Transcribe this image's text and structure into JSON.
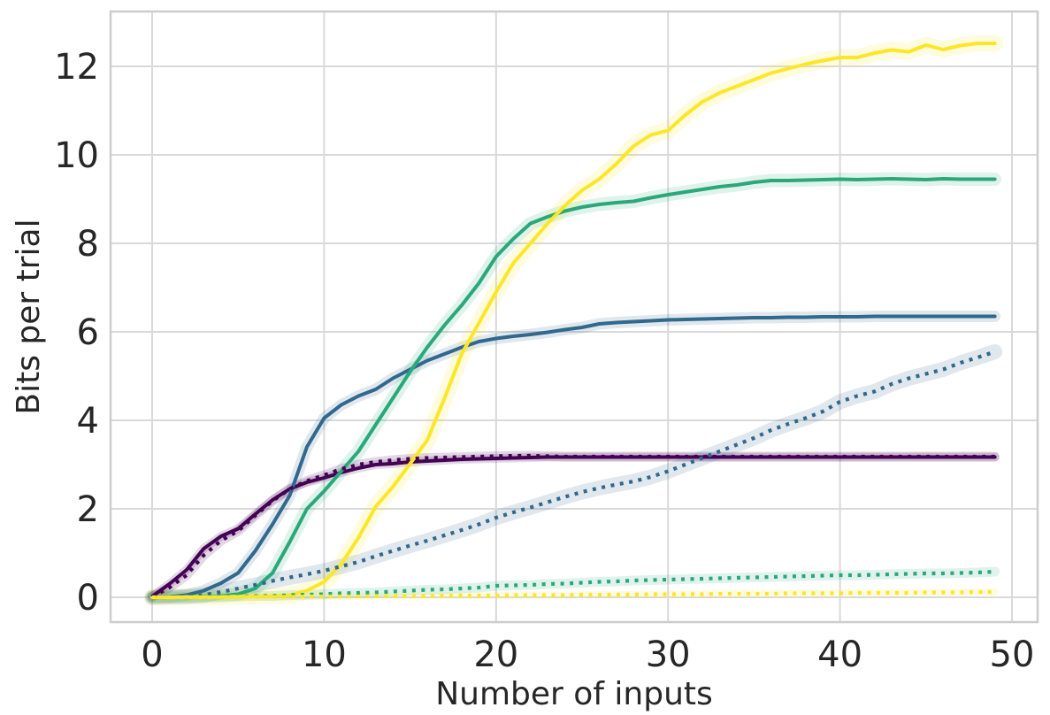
{
  "chart_data": {
    "type": "line",
    "title": "",
    "xlabel": "Number of inputs",
    "ylabel": "Bits per trial",
    "xlim": [
      -2.4,
      51.5
    ],
    "ylim": [
      -0.65,
      13.25
    ],
    "xticks": [
      0,
      10,
      20,
      30,
      40,
      50
    ],
    "yticks": [
      0,
      2,
      4,
      6,
      8,
      10,
      12
    ],
    "grid": true,
    "legend_position": "none",
    "x": [
      0,
      1,
      2,
      3,
      4,
      5,
      6,
      7,
      8,
      9,
      10,
      11,
      12,
      13,
      14,
      15,
      16,
      17,
      18,
      19,
      20,
      21,
      22,
      23,
      24,
      25,
      26,
      27,
      28,
      29,
      30,
      31,
      32,
      33,
      34,
      35,
      36,
      37,
      38,
      39,
      40,
      41,
      42,
      43,
      44,
      45,
      46,
      47,
      48,
      49
    ],
    "series": [
      {
        "name": "purple-solid",
        "color": "#440154",
        "style": "solid",
        "band": 0.06,
        "values": [
          0.02,
          0.3,
          0.62,
          1.1,
          1.38,
          1.55,
          1.88,
          2.2,
          2.45,
          2.6,
          2.7,
          2.82,
          2.92,
          3.0,
          3.02,
          3.06,
          3.08,
          3.1,
          3.12,
          3.13,
          3.14,
          3.15,
          3.16,
          3.17,
          3.17,
          3.17,
          3.17,
          3.17,
          3.17,
          3.17,
          3.17,
          3.17,
          3.17,
          3.17,
          3.17,
          3.17,
          3.17,
          3.17,
          3.17,
          3.17,
          3.17,
          3.17,
          3.17,
          3.17,
          3.17,
          3.17,
          3.17,
          3.17,
          3.17,
          3.17
        ]
      },
      {
        "name": "blue-solid",
        "color": "#31688e",
        "style": "solid",
        "band": 0.09,
        "values": [
          0.0,
          0.01,
          0.05,
          0.15,
          0.32,
          0.55,
          1.05,
          1.65,
          2.3,
          3.4,
          4.05,
          4.35,
          4.55,
          4.7,
          4.95,
          5.15,
          5.35,
          5.5,
          5.65,
          5.78,
          5.85,
          5.9,
          5.94,
          5.99,
          6.05,
          6.1,
          6.18,
          6.21,
          6.23,
          6.25,
          6.27,
          6.28,
          6.29,
          6.3,
          6.31,
          6.32,
          6.32,
          6.33,
          6.33,
          6.34,
          6.34,
          6.34,
          6.35,
          6.35,
          6.35,
          6.35,
          6.35,
          6.35,
          6.35,
          6.35
        ]
      },
      {
        "name": "green-solid",
        "color": "#2aa87c",
        "style": "solid",
        "band": 0.11,
        "values": [
          0.0,
          0.01,
          0.01,
          0.02,
          0.03,
          0.07,
          0.2,
          0.55,
          1.25,
          2.0,
          2.4,
          2.85,
          3.3,
          3.9,
          4.5,
          5.1,
          5.65,
          6.15,
          6.6,
          7.1,
          7.7,
          8.1,
          8.45,
          8.6,
          8.73,
          8.82,
          8.88,
          8.92,
          8.95,
          9.03,
          9.1,
          9.16,
          9.22,
          9.28,
          9.32,
          9.38,
          9.42,
          9.42,
          9.43,
          9.44,
          9.45,
          9.44,
          9.45,
          9.46,
          9.45,
          9.44,
          9.46,
          9.45,
          9.45,
          9.45
        ]
      },
      {
        "name": "yellow-solid",
        "color": "#fde725",
        "style": "solid",
        "band": 0.15,
        "values": [
          0.0,
          0.0,
          0.01,
          0.01,
          0.01,
          0.02,
          0.02,
          0.03,
          0.05,
          0.15,
          0.35,
          0.75,
          1.35,
          2.05,
          2.5,
          3.02,
          3.55,
          4.5,
          5.5,
          6.2,
          6.9,
          7.55,
          8.0,
          8.45,
          8.85,
          9.2,
          9.45,
          9.8,
          10.2,
          10.45,
          10.55,
          10.9,
          11.2,
          11.4,
          11.55,
          11.7,
          11.85,
          11.95,
          12.05,
          12.13,
          12.2,
          12.2,
          12.3,
          12.37,
          12.33,
          12.48,
          12.38,
          12.47,
          12.52,
          12.52
        ]
      },
      {
        "name": "purple-dotted",
        "color": "#440154",
        "style": "dotted",
        "band": 0.07,
        "values": [
          0.01,
          0.22,
          0.5,
          0.95,
          1.28,
          1.5,
          1.85,
          2.18,
          2.45,
          2.63,
          2.76,
          2.9,
          3.0,
          3.06,
          3.1,
          3.13,
          3.15,
          3.16,
          3.17,
          3.18,
          3.19,
          3.2,
          3.2,
          3.19,
          3.18,
          3.18,
          3.18,
          3.18,
          3.18,
          3.18,
          3.18,
          3.18,
          3.18,
          3.18,
          3.18,
          3.18,
          3.18,
          3.18,
          3.18,
          3.18,
          3.18,
          3.18,
          3.18,
          3.18,
          3.18,
          3.18,
          3.18,
          3.18,
          3.18,
          3.18
        ]
      },
      {
        "name": "blue-dotted",
        "color": "#31688e",
        "style": "dotted",
        "band": 0.13,
        "values": [
          0.0,
          0.01,
          0.02,
          0.05,
          0.12,
          0.2,
          0.28,
          0.37,
          0.45,
          0.52,
          0.6,
          0.7,
          0.8,
          0.93,
          1.05,
          1.17,
          1.28,
          1.4,
          1.52,
          1.65,
          1.8,
          1.92,
          2.03,
          2.15,
          2.27,
          2.38,
          2.47,
          2.55,
          2.62,
          2.72,
          2.85,
          3.0,
          3.15,
          3.3,
          3.45,
          3.6,
          3.78,
          3.92,
          4.05,
          4.2,
          4.42,
          4.55,
          4.65,
          4.82,
          4.95,
          5.05,
          5.15,
          5.3,
          5.42,
          5.55
        ]
      },
      {
        "name": "green-dotted",
        "color": "#2aa87c",
        "style": "dotted",
        "band": 0.07,
        "values": [
          0.0,
          0.0,
          0.01,
          0.01,
          0.02,
          0.02,
          0.03,
          0.03,
          0.05,
          0.06,
          0.07,
          0.09,
          0.1,
          0.11,
          0.13,
          0.15,
          0.17,
          0.18,
          0.2,
          0.22,
          0.26,
          0.27,
          0.28,
          0.3,
          0.31,
          0.33,
          0.35,
          0.36,
          0.38,
          0.39,
          0.4,
          0.41,
          0.42,
          0.43,
          0.44,
          0.45,
          0.46,
          0.47,
          0.48,
          0.49,
          0.5,
          0.5,
          0.51,
          0.52,
          0.53,
          0.54,
          0.54,
          0.55,
          0.56,
          0.58
        ]
      },
      {
        "name": "yellow-dotted",
        "color": "#fde725",
        "style": "dotted",
        "band": 0.04,
        "values": [
          0.0,
          0.0,
          0.0,
          0.0,
          0.0,
          0.01,
          0.01,
          0.01,
          0.01,
          0.02,
          0.02,
          0.02,
          0.02,
          0.03,
          0.03,
          0.03,
          0.03,
          0.04,
          0.04,
          0.04,
          0.04,
          0.05,
          0.05,
          0.05,
          0.05,
          0.06,
          0.06,
          0.06,
          0.06,
          0.07,
          0.07,
          0.07,
          0.07,
          0.08,
          0.08,
          0.08,
          0.08,
          0.09,
          0.09,
          0.09,
          0.09,
          0.1,
          0.1,
          0.1,
          0.1,
          0.11,
          0.11,
          0.11,
          0.12,
          0.12
        ]
      }
    ]
  },
  "style": {
    "background_color": "#ffffff",
    "grid_color": "#d9d9d9",
    "spine_color": "#cccccc",
    "text_color": "#262626",
    "band_opacity": 0.15
  }
}
